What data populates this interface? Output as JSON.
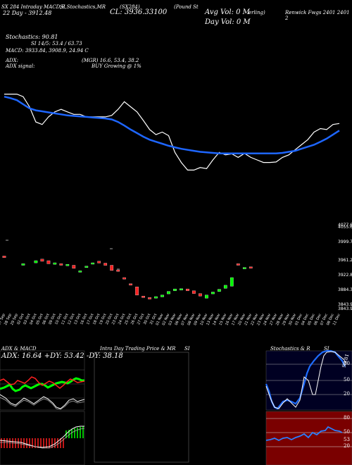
{
  "header": {
    "line1": "SX 284 Intraday MACD,R",
    "line1b": "SI,Stochastics,MR",
    "line1c": "(SX284)",
    "line1d": "(Pound St",
    "line1e": "erling)",
    "line1f": "Renwick Fwgs 2401 2401 2",
    "line2": "22 Day - 3912.48",
    "close": "CL: 3936.33100",
    "avg_vol": "Avg Vol: 0   M",
    "day_vol": "Day Vol: 0   M",
    "stoch": "Stochastics: 90.81",
    "si": "SI 14/5: 53.4  / 63.73",
    "macd": "MACD: 3933.84,  3908.9,  24.94  C",
    "adx": "ADX:",
    "mgr": "(MGR) 16.6,  53.4,  38.2",
    "adx_signal": "ADX  signal:",
    "buy": "BUY Growing @ 1%"
  },
  "price_axis": [
    "4077.66",
    "4055.65",
    "3999.73",
    "3961.27",
    "3922.81",
    "3884.36",
    "3843.9",
    "3843.90"
  ],
  "dates": [
    "27 Sep",
    "28 Sep",
    "29 Sep",
    "02 Oct",
    "03 Oct",
    "04 Oct",
    "05 Oct",
    "06 Oct",
    "09 Oct",
    "10 Oct",
    "11 Oct",
    "12 Oct",
    "13 Oct",
    "16 Oct",
    "17 Oct",
    "18 Oct",
    "19 Oct",
    "20 Oct",
    "23 Oct",
    "24 Oct",
    "25 Oct",
    "26 Oct",
    "27 Oct",
    "30 Oct",
    "31 Oct",
    "01 Nov",
    "02 Nov",
    "03 Nov",
    "06 Nov",
    "07 Nov",
    "08 Nov",
    "09 Nov",
    "10 Nov",
    "13 Nov",
    "14 Nov",
    "15 Nov",
    "16 Nov",
    "17 Nov",
    "20 Nov",
    "21 Nov",
    "22 Nov",
    "23 Nov",
    "24 Nov",
    "27 Nov",
    "28 Nov",
    "29 Nov",
    "30 Nov",
    "01 Dec",
    "04 Dec",
    "05 Dec",
    "06 Dec",
    "07 Dec",
    "08 Dec",
    "11 Dec"
  ],
  "panels": {
    "adx_title": "ADX  & MACD",
    "adx_values": "ADX: 16.64  +DY: 53.42  -DY: 38.18",
    "intra_title": "Intra  Day Trading Price  & MR",
    "intra_si": "SI",
    "stoch_title": "Stochastics & R",
    "stoch_si": "SI",
    "stoch_value": "90.81",
    "stoch_levels": [
      "80",
      "50",
      "20"
    ],
    "rsi_levels": [
      "80",
      "50",
      "20"
    ],
    "rsi_value": "53"
  },
  "chart_data": {
    "type": "line",
    "title": "SX 284 Intraday MACD,RSI,Stochastics,MRSI",
    "series": [
      {
        "name": "price",
        "values": [
          3960,
          3960,
          3960,
          3955,
          3935,
          3905,
          3900,
          3915,
          3925,
          3930,
          3925,
          3920,
          3920,
          3915,
          3915,
          3915,
          3915,
          3918,
          3930,
          3945,
          3935,
          3925,
          3908,
          3890,
          3880,
          3885,
          3878,
          3845,
          3825,
          3810,
          3810,
          3815,
          3813,
          3830,
          3845,
          3840,
          3842,
          3835,
          3843,
          3835,
          3830,
          3825,
          3825,
          3826,
          3835,
          3840,
          3850,
          3860,
          3870,
          3885,
          3892,
          3890,
          3900,
          3902
        ]
      },
      {
        "name": "moving average",
        "values": [
          3955,
          3952,
          3948,
          3940,
          3932,
          3928,
          3926,
          3924,
          3922,
          3920,
          3918,
          3917,
          3916,
          3915,
          3914,
          3913,
          3912,
          3910,
          3905,
          3898,
          3890,
          3883,
          3876,
          3870,
          3866,
          3862,
          3858,
          3855,
          3852,
          3850,
          3848,
          3846,
          3845,
          3844,
          3843,
          3843,
          3843,
          3843,
          3843,
          3843,
          3843,
          3843,
          3843,
          3843,
          3844,
          3846,
          3848,
          3852,
          3856,
          3860,
          3866,
          3872,
          3880,
          3888
        ]
      }
    ],
    "candles": [
      {
        "date": "27 Sep",
        "open": 3985,
        "close": 3980
      },
      {
        "date": "02 Oct",
        "open": 3955,
        "close": 3960
      },
      {
        "date": "04 Oct",
        "open": 3963,
        "close": 3970
      },
      {
        "date": "05 Oct",
        "open": 3975,
        "close": 3968
      },
      {
        "date": "06 Oct",
        "open": 3970,
        "close": 3960
      },
      {
        "date": "09 Oct",
        "open": 3958,
        "close": 3963
      },
      {
        "date": "10 Oct",
        "open": 3960,
        "close": 3955
      },
      {
        "date": "11 Oct",
        "open": 3955,
        "close": 3958
      },
      {
        "date": "12 Oct",
        "open": 3955,
        "close": 3945
      },
      {
        "date": "13 Oct",
        "open": 3935,
        "close": 3937
      },
      {
        "date": "16 Oct",
        "open": 3948,
        "close": 3952
      },
      {
        "date": "17 Oct",
        "open": 3960,
        "close": 3963
      },
      {
        "date": "18 Oct",
        "open": 3968,
        "close": 3962
      },
      {
        "date": "19 Oct",
        "open": 3962,
        "close": 3955
      },
      {
        "date": "20 Oct",
        "open": 3955,
        "close": 3938
      },
      {
        "date": "23 Oct",
        "open": 3940,
        "close": 3935
      },
      {
        "date": "24 Oct",
        "open": 3915,
        "close": 3910
      },
      {
        "date": "25 Oct",
        "open": 3895,
        "close": 3893
      },
      {
        "date": "26 Oct",
        "open": 3885,
        "close": 3858
      },
      {
        "date": "27 Oct",
        "open": 3855,
        "close": 3850
      },
      {
        "date": "30 Oct",
        "open": 3850,
        "close": 3845
      },
      {
        "date": "31 Oct",
        "open": 3848,
        "close": 3853
      },
      {
        "date": "01 Nov",
        "open": 3852,
        "close": 3858
      },
      {
        "date": "02 Nov",
        "open": 3862,
        "close": 3870
      },
      {
        "date": "03 Nov",
        "open": 3872,
        "close": 3878
      },
      {
        "date": "06 Nov",
        "open": 3876,
        "close": 3879
      },
      {
        "date": "07 Nov",
        "open": 3878,
        "close": 3872
      },
      {
        "date": "08 Nov",
        "open": 3872,
        "close": 3863
      },
      {
        "date": "09 Nov",
        "open": 3863,
        "close": 3855
      },
      {
        "date": "10 Nov",
        "open": 3848,
        "close": 3858
      },
      {
        "date": "13 Nov",
        "open": 3862,
        "close": 3868
      },
      {
        "date": "14 Nov",
        "open": 3870,
        "close": 3877
      },
      {
        "date": "15 Nov",
        "open": 3880,
        "close": 3890
      },
      {
        "date": "16 Nov",
        "open": 3887,
        "close": 3915
      },
      {
        "date": "17 Nov",
        "open": 3960,
        "close": 3955
      },
      {
        "date": "20 Nov",
        "open": 3945,
        "close": 3948
      },
      {
        "date": "21 Nov",
        "open": 3950,
        "close": 3947
      }
    ]
  }
}
